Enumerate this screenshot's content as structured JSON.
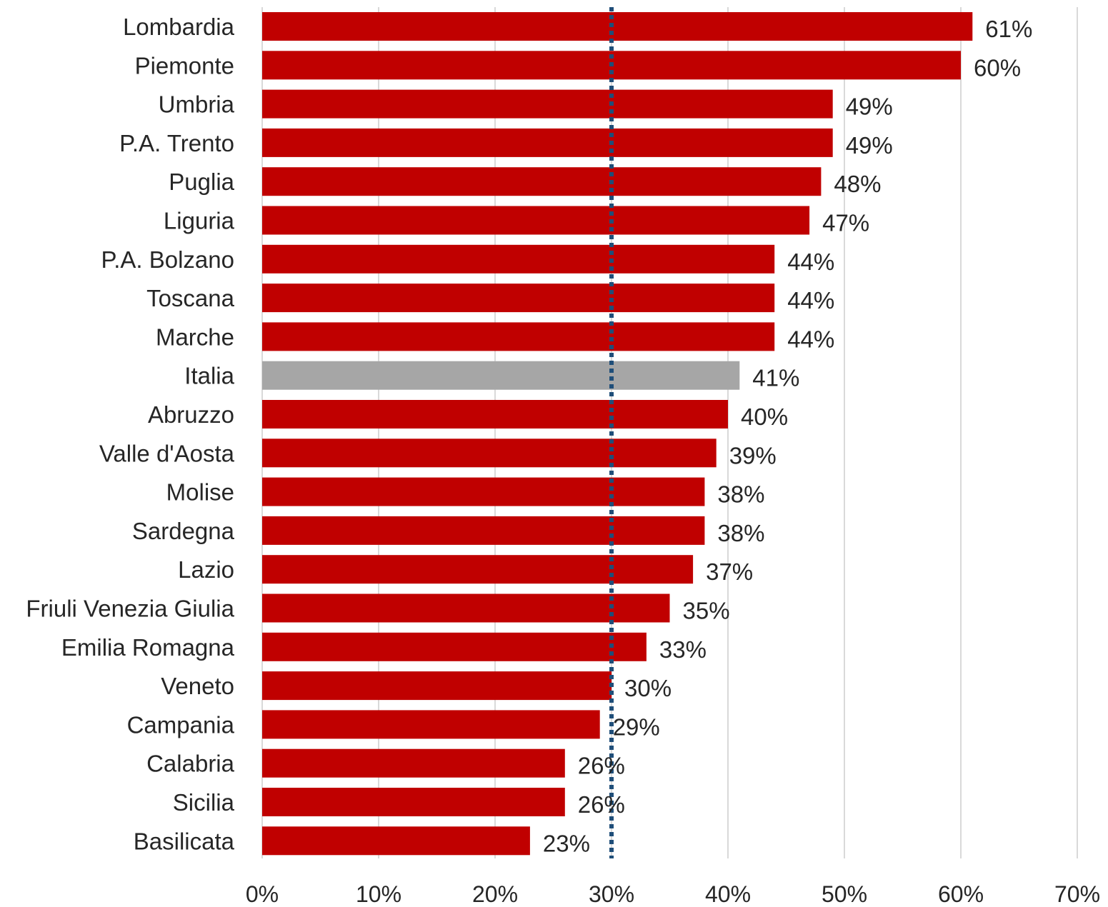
{
  "chart_data": {
    "type": "bar",
    "orientation": "horizontal",
    "categories": [
      "Lombardia",
      "Piemonte",
      "Umbria",
      "P.A. Trento",
      "Puglia",
      "Liguria",
      "P.A. Bolzano",
      "Toscana",
      "Marche",
      "Italia",
      "Abruzzo",
      "Valle d'Aosta",
      "Molise",
      "Sardegna",
      "Lazio",
      "Friuli Venezia Giulia",
      "Emilia Romagna",
      "Veneto",
      "Campania",
      "Calabria",
      "Sicilia",
      "Basilicata"
    ],
    "values": [
      61,
      60,
      49,
      49,
      48,
      47,
      44,
      44,
      44,
      41,
      40,
      39,
      38,
      38,
      37,
      35,
      33,
      30,
      29,
      26,
      26,
      23
    ],
    "value_labels": [
      "61%",
      "60%",
      "49%",
      "49%",
      "48%",
      "47%",
      "44%",
      "44%",
      "44%",
      "41%",
      "40%",
      "39%",
      "38%",
      "38%",
      "37%",
      "35%",
      "33%",
      "30%",
      "29%",
      "26%",
      "26%",
      "23%"
    ],
    "highlight_category": "Italia",
    "xlim": [
      0,
      70
    ],
    "x_ticks": [
      0,
      10,
      20,
      30,
      40,
      50,
      60,
      70
    ],
    "x_tick_labels": [
      "0%",
      "10%",
      "20%",
      "30%",
      "40%",
      "50%",
      "60%",
      "70%"
    ],
    "reference_line": 30,
    "grid": true,
    "title": "",
    "xlabel": "",
    "ylabel": "",
    "colors": {
      "bar": "#c00000",
      "highlight": "#a6a6a6",
      "reference_line": "#1f4e79",
      "grid": "#d9d9d9"
    }
  }
}
